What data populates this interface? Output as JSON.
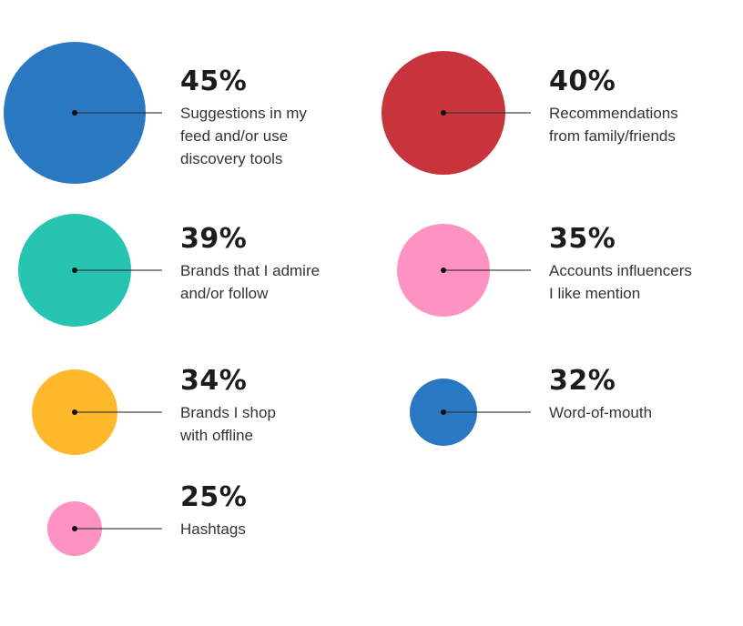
{
  "chart_data": {
    "type": "bubble",
    "title": "",
    "unit": "%",
    "items": [
      {
        "value": 45,
        "pct_label": "45%",
        "label": "Suggestions in my\nfeed and/or use\ndiscovery tools",
        "color": "#2a78c2"
      },
      {
        "value": 40,
        "pct_label": "40%",
        "label": "Recommendations\nfrom family/friends",
        "color": "#c7343b"
      },
      {
        "value": 39,
        "pct_label": "39%",
        "label": "Brands that I admire\nand/or follow",
        "color": "#27c4b1"
      },
      {
        "value": 35,
        "pct_label": "35%",
        "label": "Accounts influencers\nI like mention",
        "color": "#fd92c3"
      },
      {
        "value": 34,
        "pct_label": "34%",
        "label": "Brands I shop\nwith offline",
        "color": "#fdb92b"
      },
      {
        "value": 32,
        "pct_label": "32%",
        "label": "Word-of-mouth",
        "color": "#2a78c2"
      },
      {
        "value": 25,
        "pct_label": "25%",
        "label": "Hashtags",
        "color": "#fd92c3"
      }
    ]
  }
}
